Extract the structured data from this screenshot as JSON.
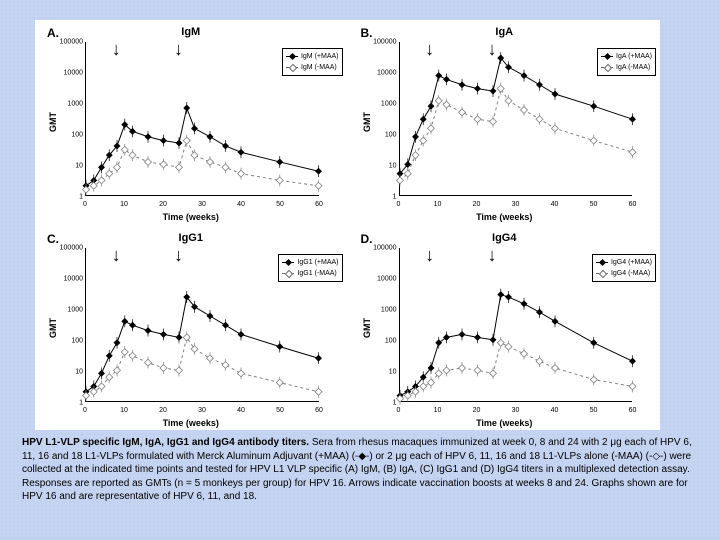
{
  "figure": {
    "background_color": "#ffffff",
    "page_background": "#c5d4f0",
    "yaxis": {
      "label": "GMT",
      "ticks": [
        1,
        10,
        100,
        1000,
        10000,
        100000
      ],
      "scale": "log",
      "range": [
        1,
        100000
      ]
    },
    "xaxis": {
      "label": "Time (weeks)",
      "ticks": [
        0,
        10,
        20,
        30,
        40,
        50,
        60
      ],
      "range": [
        0,
        60
      ]
    },
    "arrow_weeks": [
      8,
      24
    ],
    "series_style": {
      "plus": {
        "color": "#000000",
        "line": "solid",
        "marker": "diamond-filled",
        "size": 5
      },
      "minus": {
        "color": "#808080",
        "line": "dashed",
        "marker": "diamond-open",
        "size": 5
      }
    },
    "panels": {
      "A": {
        "letter": "A.",
        "title": "IgM",
        "legend": [
          "IgM (+MAA)",
          "IgM (-MAA)"
        ],
        "series": {
          "plus": {
            "x": [
              0,
              2,
              4,
              6,
              8,
              10,
              12,
              16,
              20,
              24,
              26,
              28,
              32,
              36,
              40,
              50,
              60
            ],
            "y": [
              2,
              3,
              8,
              20,
              40,
              200,
              120,
              80,
              60,
              50,
              700,
              150,
              80,
              40,
              25,
              12,
              6
            ]
          },
          "minus": {
            "x": [
              0,
              2,
              4,
              6,
              8,
              10,
              12,
              16,
              20,
              24,
              26,
              28,
              32,
              36,
              40,
              50,
              60
            ],
            "y": [
              1.5,
              2,
              3,
              5,
              8,
              30,
              20,
              12,
              10,
              8,
              60,
              20,
              12,
              8,
              5,
              3,
              2
            ]
          }
        }
      },
      "B": {
        "letter": "B.",
        "title": "IgA",
        "legend": [
          "IgA (+MAA)",
          "IgA (-MAA)"
        ],
        "series": {
          "plus": {
            "x": [
              0,
              2,
              4,
              6,
              8,
              10,
              12,
              16,
              20,
              24,
              26,
              28,
              32,
              36,
              40,
              50,
              60
            ],
            "y": [
              5,
              10,
              80,
              300,
              800,
              8000,
              6000,
              4000,
              3000,
              2500,
              30000,
              15000,
              8000,
              4000,
              2000,
              800,
              300
            ]
          },
          "minus": {
            "x": [
              0,
              2,
              4,
              6,
              8,
              10,
              12,
              16,
              20,
              24,
              26,
              28,
              32,
              36,
              40,
              50,
              60
            ],
            "y": [
              3,
              5,
              20,
              60,
              150,
              1200,
              900,
              500,
              300,
              250,
              3000,
              1200,
              600,
              300,
              150,
              60,
              25
            ]
          }
        }
      },
      "C": {
        "letter": "C.",
        "title": "IgG1",
        "legend": [
          "IgG1 (+MAA)",
          "IgG1 (-MAA)"
        ],
        "series": {
          "plus": {
            "x": [
              0,
              2,
              4,
              6,
              8,
              10,
              12,
              16,
              20,
              24,
              26,
              28,
              32,
              36,
              40,
              50,
              60
            ],
            "y": [
              2,
              3,
              8,
              30,
              80,
              400,
              300,
              200,
              150,
              120,
              2500,
              1200,
              600,
              300,
              150,
              60,
              25
            ]
          },
          "minus": {
            "x": [
              0,
              2,
              4,
              6,
              8,
              10,
              12,
              16,
              20,
              24,
              26,
              28,
              32,
              36,
              40,
              50,
              60
            ],
            "y": [
              1.5,
              2,
              3,
              6,
              10,
              40,
              30,
              18,
              12,
              10,
              120,
              50,
              25,
              15,
              8,
              4,
              2
            ]
          }
        }
      },
      "D": {
        "letter": "D.",
        "title": "IgG4",
        "legend": [
          "IgG4 (+MAA)",
          "IgG4 (-MAA)"
        ],
        "series": {
          "plus": {
            "x": [
              0,
              2,
              4,
              6,
              8,
              10,
              12,
              16,
              20,
              24,
              26,
              28,
              32,
              36,
              40,
              50,
              60
            ],
            "y": [
              1.5,
              2,
              3,
              6,
              12,
              80,
              120,
              150,
              120,
              100,
              3000,
              2500,
              1500,
              800,
              400,
              80,
              20
            ]
          },
          "minus": {
            "x": [
              0,
              2,
              4,
              6,
              8,
              10,
              12,
              16,
              20,
              24,
              26,
              28,
              32,
              36,
              40,
              50,
              60
            ],
            "y": [
              1.2,
              1.5,
              2,
              3,
              4,
              8,
              10,
              12,
              10,
              8,
              80,
              60,
              35,
              20,
              12,
              5,
              3
            ]
          }
        }
      }
    }
  },
  "caption": {
    "bold": "HPV L1-VLP specific IgM, IgA, IgG1 and IgG4 antibody titers.",
    "text": " Sera from rhesus macaques immunized at week 0, 8 and 24 with 2 μg each of HPV 6, 11, 16 and 18 L1-VLPs formulated with Merck Aluminum Adjuvant (+MAA) (-◆-) or 2 μg each of HPV 6, 11, 16 and 18 L1-VLPs alone (-MAA) (-◇-) were collected at the indicated time points and tested for HPV L1 VLP specific (A) IgM, (B) IgA, (C) IgG1 and (D) IgG4 titers in a multiplexed detection assay. Responses are reported as GMTs (n = 5 monkeys per group) for HPV 16. Arrows indicate vaccination boosts at weeks 8 and 24. Graphs shown are for HPV 16 and are representative of HPV 6, 11, and 18."
  }
}
